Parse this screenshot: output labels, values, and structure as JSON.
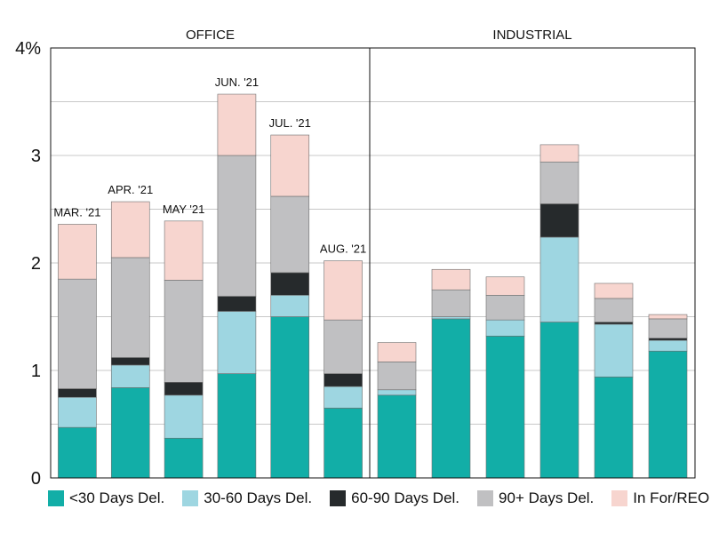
{
  "colors": {
    "lt30": "#12aea7",
    "d30_60": "#9ed6e1",
    "d60_90": "#262a2c",
    "d90plus": "#c0c0c2",
    "inFor": "#f7d5cf"
  },
  "chart_data": {
    "type": "bar",
    "stacked": true,
    "y_tick_labels": [
      "0",
      "1",
      "2",
      "3",
      "4%"
    ],
    "ylim": [
      0,
      4
    ],
    "grid": true,
    "legend_position": "bottom",
    "series": [
      {
        "key": "lt30",
        "name": "<30 Days Del."
      },
      {
        "key": "d30_60",
        "name": "30-60 Days Del."
      },
      {
        "key": "d60_90",
        "name": "60-90 Days Del."
      },
      {
        "key": "d90plus",
        "name": "90+ Days Del."
      },
      {
        "key": "inFor",
        "name": "In For/REO"
      }
    ],
    "panels": [
      {
        "title": "OFFICE",
        "categories": [
          "MAR. '21",
          "APR. '21",
          "MAY '21",
          "JUN. '21",
          "JUL. '21",
          "AUG. '21"
        ],
        "bars": [
          {
            "label": "MAR. '21",
            "values": [
              0.47,
              0.28,
              0.08,
              1.02,
              0.51
            ]
          },
          {
            "label": "APR. '21",
            "values": [
              0.84,
              0.21,
              0.07,
              0.93,
              0.52
            ]
          },
          {
            "label": "MAY '21",
            "values": [
              0.37,
              0.4,
              0.12,
              0.95,
              0.55
            ]
          },
          {
            "label": "JUN. '21",
            "values": [
              0.97,
              0.58,
              0.14,
              1.31,
              0.57
            ]
          },
          {
            "label": "JUL. '21",
            "values": [
              1.5,
              0.2,
              0.21,
              0.71,
              0.57
            ]
          },
          {
            "label": "AUG. '21",
            "values": [
              0.65,
              0.2,
              0.12,
              0.5,
              0.55
            ]
          }
        ]
      },
      {
        "title": "INDUSTRIAL",
        "categories": [
          "",
          "",
          "",
          "",
          "",
          ""
        ],
        "bars": [
          {
            "label": "",
            "values": [
              0.77,
              0.05,
              0.0,
              0.26,
              0.18
            ]
          },
          {
            "label": "",
            "values": [
              1.48,
              0.02,
              0.0,
              0.25,
              0.19
            ]
          },
          {
            "label": "",
            "values": [
              1.32,
              0.15,
              0.0,
              0.23,
              0.17
            ]
          },
          {
            "label": "",
            "values": [
              1.45,
              0.79,
              0.31,
              0.39,
              0.16
            ]
          },
          {
            "label": "",
            "values": [
              0.94,
              0.49,
              0.02,
              0.22,
              0.14
            ]
          },
          {
            "label": "",
            "values": [
              1.18,
              0.1,
              0.02,
              0.18,
              0.04
            ]
          }
        ]
      }
    ]
  }
}
